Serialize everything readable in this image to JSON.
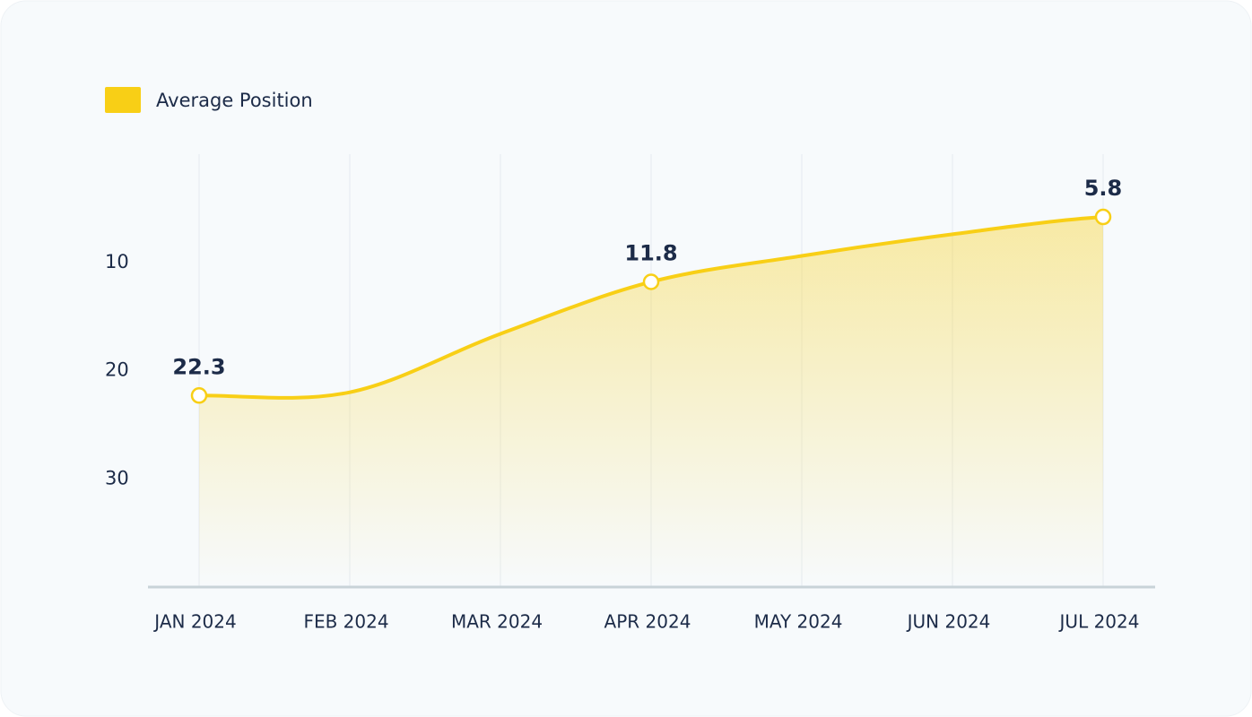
{
  "chart_data": {
    "type": "area",
    "categories": [
      "JAN 2024",
      "FEB 2024",
      "MAR 2024",
      "APR 2024",
      "MAY 2024",
      "JUN 2024",
      "JUL 2024"
    ],
    "series": [
      {
        "name": "Average Position",
        "color": "#f8cf16",
        "values": [
          22.3,
          22,
          16.6,
          11.8,
          9.4,
          7.4,
          5.8
        ],
        "value_labels": [
          "22.3",
          null,
          null,
          "11.8",
          null,
          null,
          "5.8"
        ]
      }
    ],
    "ylim": [
      40,
      0
    ],
    "yticks": [
      10,
      20,
      30
    ],
    "grid": true,
    "legend": "top-left"
  }
}
